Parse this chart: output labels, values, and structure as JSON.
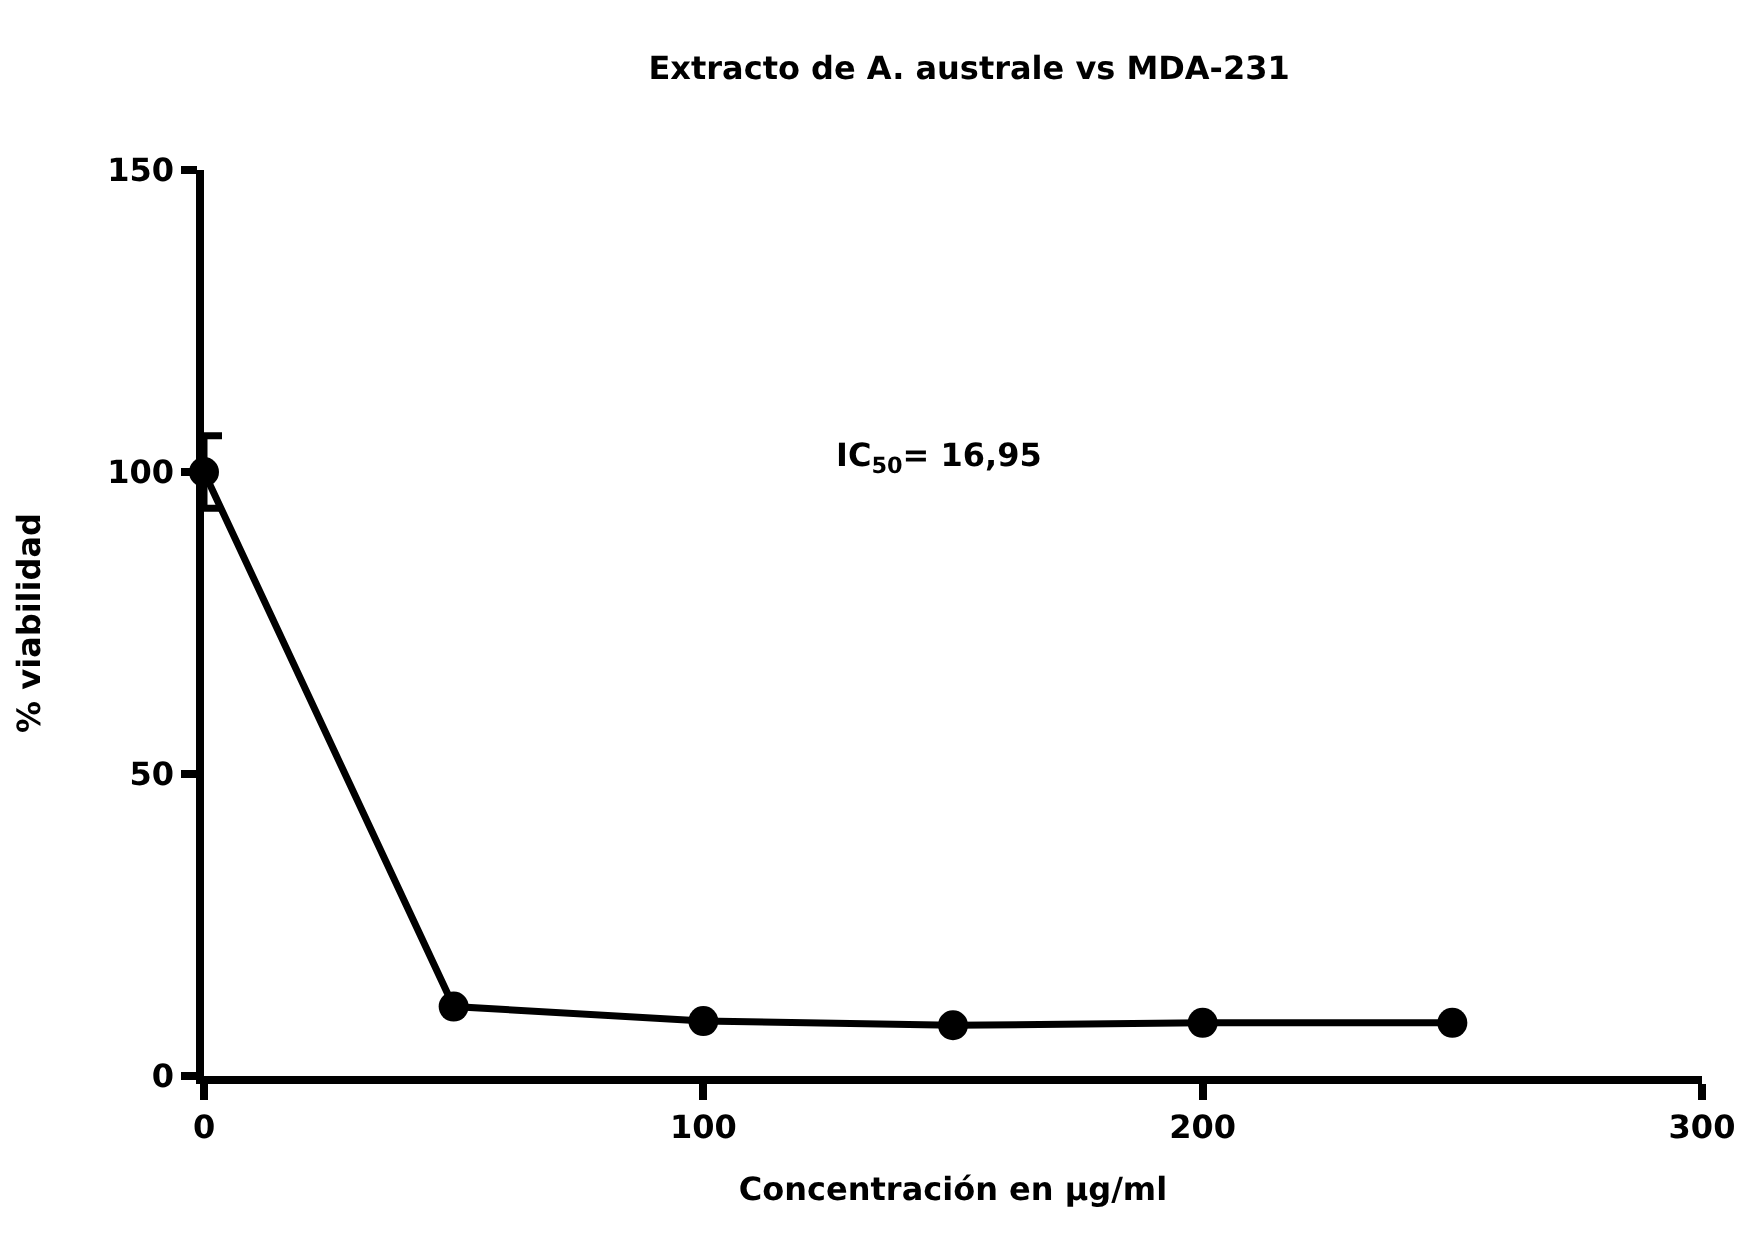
{
  "chart_data": {
    "type": "line",
    "title": "Extracto de A. australe vs MDA-231",
    "xlabel": "Concentración en µg/ml",
    "ylabel": "% viabilidad",
    "x": [
      0,
      50,
      100,
      150,
      200,
      250
    ],
    "series": [
      {
        "color": "#000000",
        "values": [
          100,
          11.5,
          9.1,
          8.4,
          8.8,
          8.8
        ],
        "errors": [
          6,
          null,
          null,
          null,
          null,
          null
        ]
      }
    ],
    "xlim": [
      0,
      300
    ],
    "xticks": [
      0,
      100,
      200,
      300
    ],
    "ylim": [
      0,
      150
    ],
    "yticks": [
      0,
      50,
      100,
      150
    ],
    "annotations": [
      "IC$_{50}$= 16,95"
    ],
    "marker": "circle",
    "line_style": "solid"
  }
}
